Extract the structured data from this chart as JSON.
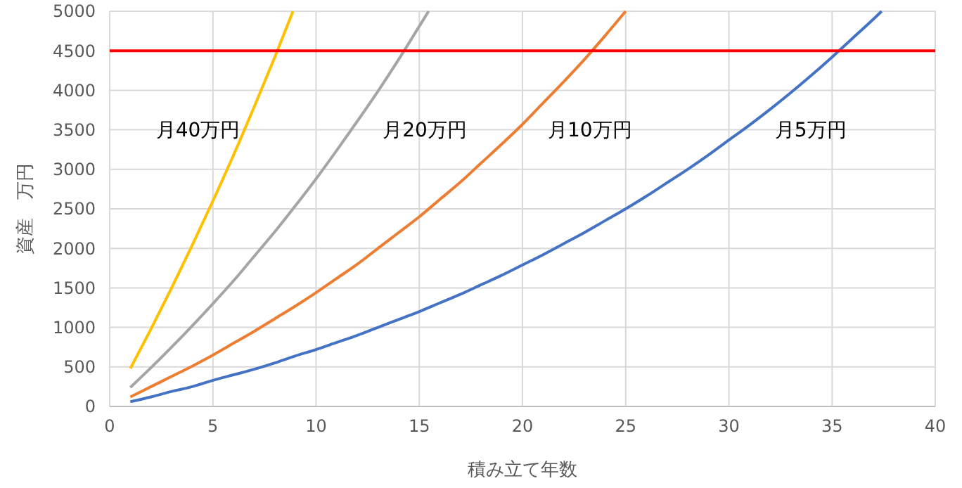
{
  "chart_data": {
    "type": "line",
    "xlabel": "積み立て年数",
    "ylabel": "資産　万円",
    "xlim": [
      0,
      40
    ],
    "xticks": [
      0,
      5,
      10,
      15,
      20,
      25,
      30,
      35,
      40
    ],
    "ylim": [
      0,
      5000
    ],
    "yticks": [
      0,
      500,
      1000,
      1500,
      2000,
      2500,
      3000,
      3500,
      4000,
      4500,
      5000
    ],
    "grid": true,
    "marker": "none",
    "line_style": "solid",
    "series": [
      {
        "name": "月5万円",
        "color": "#4472c4",
        "x": [
          1,
          2,
          3,
          4,
          5,
          6,
          7,
          8,
          9,
          10,
          11,
          12,
          13,
          14,
          15,
          16,
          17,
          18,
          19,
          20,
          21,
          22,
          23,
          24,
          25,
          26,
          27,
          28,
          29,
          30,
          31,
          32,
          33,
          34,
          35,
          36,
          37,
          37.4
        ],
        "values": [
          60,
          120,
          190,
          250,
          330,
          400,
          470,
          550,
          640,
          720,
          810,
          900,
          1000,
          1100,
          1200,
          1310,
          1420,
          1540,
          1660,
          1790,
          1920,
          2060,
          2200,
          2350,
          2500,
          2660,
          2830,
          3000,
          3180,
          3370,
          3560,
          3760,
          3970,
          4190,
          4420,
          4660,
          4900,
          5000
        ]
      },
      {
        "name": "月10万円",
        "color": "#ed7d31",
        "x": [
          1,
          2,
          3,
          4,
          5,
          6,
          7,
          8,
          9,
          10,
          11,
          12,
          13,
          14,
          15,
          16,
          17,
          18,
          19,
          20,
          21,
          22,
          23,
          24,
          25
        ],
        "values": [
          120,
          250,
          380,
          510,
          650,
          800,
          950,
          1110,
          1270,
          1440,
          1620,
          1800,
          2000,
          2200,
          2400,
          2620,
          2840,
          3080,
          3320,
          3570,
          3840,
          4110,
          4390,
          4690,
          5000
        ]
      },
      {
        "name": "月20万円",
        "color": "#a5a5a5",
        "x": [
          1,
          2,
          3,
          4,
          5,
          6,
          7,
          8,
          9,
          10,
          11,
          12,
          13,
          14,
          15,
          15.45
        ],
        "values": [
          240,
          490,
          750,
          1020,
          1300,
          1590,
          1900,
          2210,
          2540,
          2880,
          3240,
          3610,
          3990,
          4390,
          4810,
          5000
        ]
      },
      {
        "name": "月40万円",
        "color": "#ffc000",
        "x": [
          1,
          2,
          3,
          4,
          5,
          6,
          7,
          8,
          8.88
        ],
        "values": [
          480,
          980,
          1500,
          2040,
          2600,
          3180,
          3790,
          4420,
          5000
        ]
      }
    ],
    "ref_lines": [
      {
        "axis": "y",
        "value": 4500,
        "color": "#ff0000"
      }
    ]
  }
}
